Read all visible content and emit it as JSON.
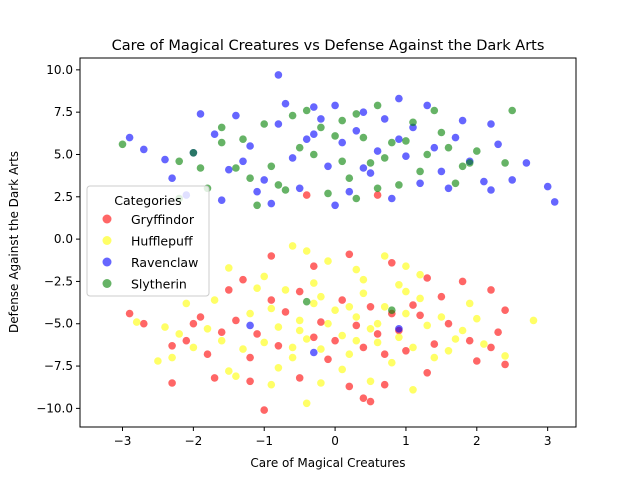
{
  "chart_data": {
    "type": "scatter",
    "title": "Care of Magical Creatures vs Defense Against the Dark Arts",
    "xlabel": "Care of Magical Creatures",
    "ylabel": "Defense Against the Dark Arts",
    "xlim": [
      -3.6,
      3.4
    ],
    "ylim": [
      -11.1,
      10.7
    ],
    "xticks": [
      -3,
      -2,
      -1,
      0,
      1,
      2,
      3
    ],
    "yticks": [
      -10.0,
      -7.5,
      -5.0,
      -2.5,
      0.0,
      2.5,
      5.0,
      7.5,
      10.0
    ],
    "grid": false,
    "legend": {
      "title": "Categories",
      "placement": "center-left"
    },
    "series": [
      {
        "name": "Gryffindor",
        "color": "#ff0000",
        "points": [
          [
            -1.0,
            -10.1
          ],
          [
            -0.9,
            -1.0
          ],
          [
            -0.3,
            -1.6
          ],
          [
            0.2,
            -0.9
          ],
          [
            0.8,
            -1.4
          ],
          [
            1.3,
            -2.3
          ],
          [
            1.8,
            -2.5
          ],
          [
            2.2,
            -3.0
          ],
          [
            2.4,
            -4.2
          ],
          [
            2.3,
            -5.5
          ],
          [
            2.2,
            -6.4
          ],
          [
            2.0,
            -7.2
          ],
          [
            2.4,
            -7.4
          ],
          [
            -2.3,
            -8.5
          ],
          [
            -1.7,
            -8.2
          ],
          [
            -1.2,
            -8.4
          ],
          [
            -0.5,
            -8.2
          ],
          [
            0.2,
            -8.7
          ],
          [
            0.4,
            -9.4
          ],
          [
            0.5,
            -9.6
          ],
          [
            0.7,
            -8.6
          ],
          [
            1.3,
            -7.9
          ],
          [
            -2.9,
            -4.4
          ],
          [
            -2.7,
            -5.0
          ],
          [
            -2.3,
            -6.3
          ],
          [
            -1.9,
            -4.6
          ],
          [
            -1.8,
            -6.8
          ],
          [
            -1.5,
            -3.0
          ],
          [
            -1.3,
            -2.4
          ],
          [
            -1.1,
            -5.6
          ],
          [
            -0.8,
            -6.3
          ],
          [
            -0.5,
            -3.1
          ],
          [
            -0.3,
            -5.8
          ],
          [
            -0.1,
            -7.1
          ],
          [
            0.1,
            -3.6
          ],
          [
            0.3,
            -5.1
          ],
          [
            0.5,
            -4.0
          ],
          [
            0.7,
            -6.8
          ],
          [
            0.9,
            -5.4
          ],
          [
            1.1,
            -3.9
          ],
          [
            1.4,
            -6.2
          ],
          [
            1.6,
            -5.0
          ],
          [
            -0.7,
            -4.3
          ],
          [
            -0.2,
            -4.9
          ],
          [
            0.0,
            -6.0
          ],
          [
            0.6,
            -5.6
          ],
          [
            -1.4,
            -4.8
          ],
          [
            1.2,
            -4.5
          ],
          [
            -0.4,
            2.6
          ],
          [
            0.6,
            2.6
          ],
          [
            -2.0,
            -5.0
          ],
          [
            -1.6,
            -5.5
          ],
          [
            -0.9,
            -3.6
          ],
          [
            0.4,
            -6.4
          ],
          [
            1.0,
            -6.6
          ],
          [
            1.5,
            -3.4
          ],
          [
            -1.2,
            -7.0
          ],
          [
            0.8,
            -4.4
          ],
          [
            -2.1,
            -6.0
          ],
          [
            1.9,
            -6.0
          ]
        ]
      },
      {
        "name": "Hufflepuff",
        "color": "#ffff00",
        "points": [
          [
            -0.6,
            -0.4
          ],
          [
            -0.4,
            -0.7
          ],
          [
            -0.1,
            -1.3
          ],
          [
            0.3,
            -1.8
          ],
          [
            0.7,
            -1.0
          ],
          [
            1.0,
            -1.6
          ],
          [
            -1.5,
            -1.7
          ],
          [
            -1.0,
            -2.2
          ],
          [
            -2.8,
            -4.9
          ],
          [
            -2.5,
            -7.2
          ],
          [
            -2.2,
            -5.6
          ],
          [
            -2.0,
            -6.4
          ],
          [
            -1.7,
            -3.6
          ],
          [
            -1.5,
            -7.8
          ],
          [
            -1.2,
            -4.4
          ],
          [
            -1.0,
            -6.1
          ],
          [
            -0.8,
            -5.2
          ],
          [
            -0.7,
            -3.0
          ],
          [
            -0.6,
            -7.0
          ],
          [
            -0.5,
            -4.8
          ],
          [
            -0.4,
            -5.9
          ],
          [
            -0.3,
            -3.8
          ],
          [
            -0.2,
            -6.5
          ],
          [
            -0.1,
            -5.0
          ],
          [
            0.0,
            -4.2
          ],
          [
            0.1,
            -5.7
          ],
          [
            0.2,
            -6.8
          ],
          [
            0.3,
            -4.6
          ],
          [
            0.4,
            -3.2
          ],
          [
            0.5,
            -5.3
          ],
          [
            0.6,
            -6.1
          ],
          [
            0.7,
            -4.0
          ],
          [
            0.8,
            -7.3
          ],
          [
            0.9,
            -5.8
          ],
          [
            1.0,
            -4.4
          ],
          [
            1.1,
            -6.4
          ],
          [
            1.2,
            -3.5
          ],
          [
            1.3,
            -5.1
          ],
          [
            1.4,
            -7.0
          ],
          [
            1.5,
            -4.6
          ],
          [
            1.7,
            -5.9
          ],
          [
            1.9,
            -3.8
          ],
          [
            2.1,
            -6.2
          ],
          [
            2.4,
            -6.9
          ],
          [
            2.8,
            -4.8
          ],
          [
            -0.4,
            -9.7
          ],
          [
            -0.2,
            -8.5
          ],
          [
            0.5,
            -8.4
          ],
          [
            1.1,
            -8.9
          ],
          [
            -1.4,
            -8.1
          ],
          [
            -0.9,
            -8.6
          ],
          [
            -2.3,
            -7.0
          ],
          [
            -2.1,
            -3.8
          ],
          [
            -1.8,
            -5.3
          ],
          [
            -1.3,
            -6.5
          ],
          [
            -0.9,
            -4.1
          ],
          [
            -0.6,
            -6.4
          ],
          [
            -0.2,
            -3.4
          ],
          [
            0.2,
            -4.0
          ],
          [
            0.6,
            -5.0
          ],
          [
            1.0,
            -3.1
          ],
          [
            1.6,
            -6.6
          ],
          [
            2.0,
            -4.7
          ],
          [
            -1.1,
            -2.9
          ],
          [
            0.4,
            -2.4
          ],
          [
            0.9,
            -2.7
          ],
          [
            -0.3,
            -2.6
          ],
          [
            1.2,
            -2.1
          ],
          [
            -0.8,
            -7.6
          ],
          [
            0.1,
            -7.7
          ],
          [
            -1.6,
            -6.0
          ],
          [
            1.8,
            -5.4
          ],
          [
            -2.4,
            -5.2
          ],
          [
            0.3,
            -6.0
          ],
          [
            -0.5,
            -5.4
          ]
        ]
      },
      {
        "name": "Ravenclaw",
        "color": "#0000ff",
        "points": [
          [
            -0.8,
            9.7
          ],
          [
            -0.7,
            8.0
          ],
          [
            -0.3,
            7.8
          ],
          [
            0.0,
            7.9
          ],
          [
            0.4,
            7.5
          ],
          [
            0.9,
            8.3
          ],
          [
            1.3,
            7.9
          ],
          [
            1.8,
            7.0
          ],
          [
            2.2,
            6.8
          ],
          [
            2.3,
            5.6
          ],
          [
            2.7,
            4.5
          ],
          [
            3.0,
            3.1
          ],
          [
            3.1,
            2.2
          ],
          [
            -2.9,
            6.0
          ],
          [
            -2.7,
            5.3
          ],
          [
            -2.4,
            4.7
          ],
          [
            -2.3,
            3.6
          ],
          [
            -2.1,
            2.6
          ],
          [
            -1.9,
            7.4
          ],
          [
            -1.7,
            6.2
          ],
          [
            -1.5,
            4.1
          ],
          [
            -1.4,
            7.3
          ],
          [
            -1.2,
            5.5
          ],
          [
            -1.0,
            3.5
          ],
          [
            -0.9,
            2.1
          ],
          [
            -0.8,
            6.8
          ],
          [
            -0.6,
            4.8
          ],
          [
            -0.5,
            3.0
          ],
          [
            -0.4,
            5.9
          ],
          [
            -0.2,
            7.1
          ],
          [
            -0.1,
            4.3
          ],
          [
            0.1,
            5.7
          ],
          [
            0.2,
            2.8
          ],
          [
            0.3,
            6.4
          ],
          [
            0.5,
            3.9
          ],
          [
            0.6,
            5.2
          ],
          [
            0.7,
            7.1
          ],
          [
            0.8,
            2.4
          ],
          [
            1.0,
            4.9
          ],
          [
            1.1,
            6.6
          ],
          [
            1.2,
            3.3
          ],
          [
            1.4,
            5.4
          ],
          [
            1.5,
            4.0
          ],
          [
            1.7,
            6.0
          ],
          [
            1.9,
            4.6
          ],
          [
            2.1,
            3.4
          ],
          [
            2.2,
            2.9
          ],
          [
            2.5,
            3.5
          ],
          [
            -1.1,
            2.8
          ],
          [
            0.0,
            2.0
          ],
          [
            -1.6,
            2.3
          ],
          [
            1.6,
            3.0
          ],
          [
            -0.3,
            6.2
          ],
          [
            0.9,
            5.9
          ],
          [
            -2.0,
            5.1
          ],
          [
            -1.2,
            -5.1
          ],
          [
            0.9,
            -5.3
          ],
          [
            -0.3,
            -6.7
          ],
          [
            -1.3,
            4.6
          ],
          [
            0.4,
            4.2
          ]
        ]
      },
      {
        "name": "Slytherin",
        "color": "#008000",
        "points": [
          [
            -3.0,
            5.6
          ],
          [
            -2.2,
            4.6
          ],
          [
            -2.0,
            5.1
          ],
          [
            -1.8,
            3.0
          ],
          [
            -1.6,
            6.6
          ],
          [
            -1.4,
            4.2
          ],
          [
            -1.1,
            2.0
          ],
          [
            -1.0,
            6.8
          ],
          [
            -0.8,
            3.2
          ],
          [
            -0.6,
            7.3
          ],
          [
            -0.4,
            7.6
          ],
          [
            -0.3,
            5.0
          ],
          [
            -0.1,
            2.7
          ],
          [
            0.0,
            6.1
          ],
          [
            0.2,
            3.6
          ],
          [
            0.3,
            7.4
          ],
          [
            0.5,
            4.5
          ],
          [
            0.6,
            7.9
          ],
          [
            0.8,
            5.7
          ],
          [
            0.9,
            3.2
          ],
          [
            1.1,
            6.9
          ],
          [
            1.2,
            4.0
          ],
          [
            1.4,
            7.6
          ],
          [
            1.6,
            5.4
          ],
          [
            1.7,
            3.3
          ],
          [
            1.9,
            4.5
          ],
          [
            2.0,
            5.2
          ],
          [
            2.4,
            4.5
          ],
          [
            2.5,
            7.6
          ],
          [
            -1.3,
            5.9
          ],
          [
            -0.9,
            4.3
          ],
          [
            -0.5,
            5.4
          ],
          [
            0.1,
            4.6
          ],
          [
            0.4,
            6.0
          ],
          [
            0.7,
            4.8
          ],
          [
            1.0,
            5.8
          ],
          [
            1.3,
            5.0
          ],
          [
            -1.9,
            4.2
          ],
          [
            -0.7,
            2.9
          ],
          [
            0.3,
            2.4
          ],
          [
            1.5,
            6.3
          ],
          [
            -2.2,
            2.4
          ],
          [
            -0.4,
            -3.7
          ],
          [
            0.8,
            -4.2
          ],
          [
            -1.6,
            5.7
          ],
          [
            -0.2,
            6.6
          ],
          [
            0.6,
            3.0
          ],
          [
            1.8,
            4.3
          ],
          [
            -1.2,
            3.6
          ],
          [
            0.1,
            7.0
          ]
        ]
      }
    ]
  }
}
